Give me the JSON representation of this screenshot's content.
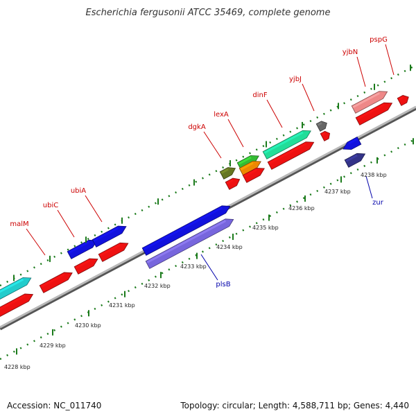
{
  "title": "Escherichia fergusonii ATCC 35469, complete genome",
  "footer": {
    "accession": "Accession: NC_011740",
    "topology": "Topology: circular; Length: 4,588,711 bp; Genes: 4,440"
  },
  "colors": {
    "backbone": "#9a9a9a",
    "tick": "#1a7a1a",
    "label_forward": "#cc0000",
    "label_reverse": "#0000aa"
  },
  "genes_forward": [
    {
      "name": "malM",
      "label": "malM"
    },
    {
      "name": "ubiC",
      "label": "ubiC"
    },
    {
      "name": "ubiA",
      "label": "ubiA"
    },
    {
      "name": "dgkA",
      "label": "dgkA"
    },
    {
      "name": "lexA",
      "label": "lexA"
    },
    {
      "name": "dinF",
      "label": "dinF"
    },
    {
      "name": "yjbJ",
      "label": "yjbJ"
    },
    {
      "name": "yjbN",
      "label": "yjbN"
    },
    {
      "name": "pspG",
      "label": "pspG"
    }
  ],
  "genes_reverse": [
    {
      "name": "plsB",
      "label": "plsB"
    },
    {
      "name": "zur",
      "label": "zur"
    }
  ],
  "kbp_ticks": [
    "4228 kbp",
    "4229 kbp",
    "4230 kbp",
    "4231 kbp",
    "4232 kbp",
    "4233 kbp",
    "4234 kbp",
    "4235 kbp",
    "4236 kbp",
    "4237 kbp",
    "4238 kbp"
  ]
}
